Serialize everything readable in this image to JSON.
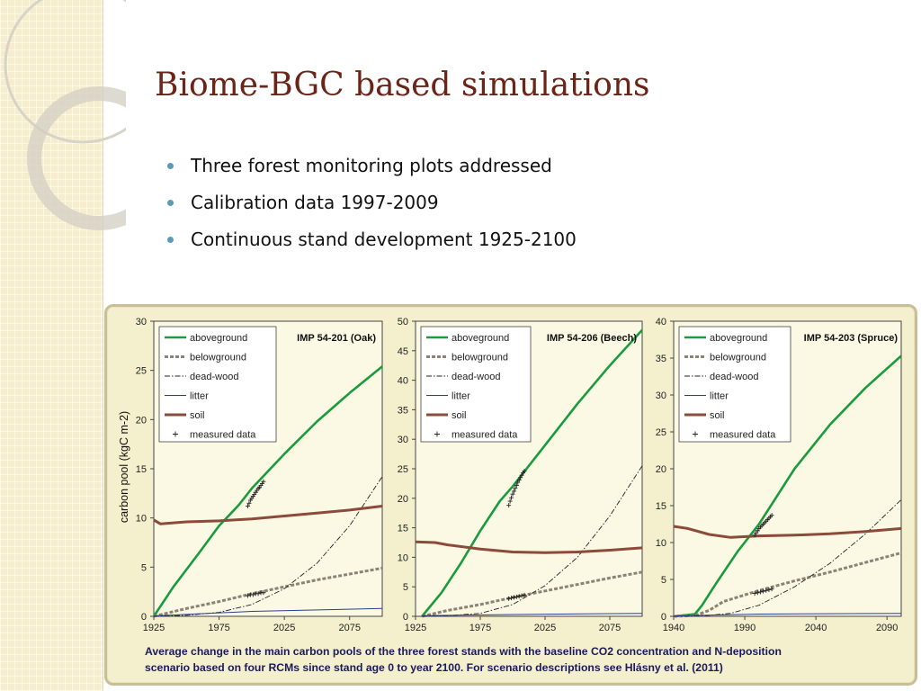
{
  "slide": {
    "title": "Biome-BGC based simulations",
    "bullets": [
      "Three forest monitoring plots addressed",
      "Calibration data 1997-2009",
      "Continuous stand development 1925-2100"
    ],
    "caption_line1": "Average change in the main carbon pools of the three forest stands with the baseline CO2 concentration and N-deposition",
    "caption_line2": "scenario based on four RCMs since stand age 0 to year 2100. For scenario descriptions see Hlásny et al. (2011)"
  },
  "colors": {
    "title": "#6b2418",
    "bullet": "#5b9bb5",
    "aboveground": "#1a9b3e",
    "belowground": "#8c8377",
    "deadwood": "#222222",
    "litter": "#2b3f8f",
    "soil": "#8b4a3a",
    "measured": "#222222",
    "plot_bg": "#fbf9e3"
  },
  "chart_data": [
    {
      "type": "line",
      "title": "IMP 54-201 (Oak)",
      "ylabel": "carbon pool (kgC m-2)",
      "xlim": [
        1925,
        2100
      ],
      "ylim": [
        0,
        30
      ],
      "xticks": [
        "1925",
        "1975",
        "2025",
        "2075"
      ],
      "yticks": [
        "0",
        "5",
        "10",
        "15",
        "20",
        "25",
        "30"
      ],
      "legend_position": "top-left",
      "series": [
        {
          "name": "aboveground",
          "x": [
            1925,
            1940,
            1960,
            1975,
            1990,
            2000,
            2025,
            2050,
            2075,
            2100
          ],
          "y": [
            0,
            3,
            6.5,
            9.2,
            11.3,
            13,
            16.5,
            19.8,
            22.7,
            25.4
          ]
        },
        {
          "name": "belowground",
          "x": [
            1925,
            1950,
            1975,
            2000,
            2025,
            2050,
            2075,
            2100
          ],
          "y": [
            0,
            0.8,
            1.5,
            2.3,
            3,
            3.7,
            4.3,
            4.9
          ]
        },
        {
          "name": "dead-wood",
          "x": [
            1925,
            1950,
            1975,
            2000,
            2025,
            2050,
            2075,
            2100
          ],
          "y": [
            0,
            0.1,
            0.4,
            1.2,
            2.8,
            5.4,
            9.2,
            14.2
          ]
        },
        {
          "name": "litter",
          "x": [
            1925,
            2000,
            2100
          ],
          "y": [
            0.05,
            0.5,
            0.8
          ]
        },
        {
          "name": "soil",
          "x": [
            1925,
            1930,
            1950,
            1975,
            2000,
            2025,
            2050,
            2075,
            2100
          ],
          "y": [
            9.8,
            9.4,
            9.6,
            9.7,
            9.9,
            10.2,
            10.5,
            10.8,
            11.2
          ]
        }
      ],
      "measured": [
        {
          "x": [
            1997,
            1998,
            1999,
            2000,
            2001,
            2002,
            2003,
            2004,
            2005,
            2006,
            2007,
            2008,
            2009
          ],
          "y": [
            11.2,
            11.5,
            11.8,
            12.0,
            12.2,
            12.4,
            12.6,
            12.8,
            13.0,
            13.1,
            13.3,
            13.5,
            13.7
          ]
        },
        {
          "x": [
            1997,
            1999,
            2001,
            2003,
            2005,
            2007,
            2009
          ],
          "y": [
            2.1,
            2.2,
            2.2,
            2.3,
            2.3,
            2.4,
            2.4
          ]
        }
      ]
    },
    {
      "type": "line",
      "title": "IMP 54-206  (Beech)",
      "ylabel": "",
      "xlim": [
        1925,
        2100
      ],
      "ylim": [
        0,
        50
      ],
      "xticks": [
        "1925",
        "1975",
        "2025",
        "2075"
      ],
      "yticks": [
        "0",
        "5",
        "10",
        "15",
        "20",
        "25",
        "30",
        "35",
        "40",
        "45",
        "50"
      ],
      "legend_position": "top-left",
      "series": [
        {
          "name": "aboveground",
          "x": [
            1930,
            1945,
            1960,
            1975,
            1990,
            2000,
            2025,
            2050,
            2075,
            2100
          ],
          "y": [
            0,
            4,
            9,
            14.5,
            19.5,
            22,
            29,
            36,
            42.5,
            48.5
          ]
        },
        {
          "name": "belowground",
          "x": [
            1930,
            1950,
            1975,
            2000,
            2025,
            2050,
            2075,
            2100
          ],
          "y": [
            0,
            1,
            2,
            3.2,
            4.3,
            5.4,
            6.5,
            7.5
          ]
        },
        {
          "name": "dead-wood",
          "x": [
            1930,
            1950,
            1975,
            2000,
            2025,
            2050,
            2075,
            2100
          ],
          "y": [
            0,
            0.1,
            0.5,
            2,
            5.2,
            10,
            17,
            25.5
          ]
        },
        {
          "name": "litter",
          "x": [
            1930,
            2000,
            2100
          ],
          "y": [
            0.1,
            0.3,
            0.5
          ]
        },
        {
          "name": "soil",
          "x": [
            1925,
            1940,
            1950,
            1975,
            2000,
            2025,
            2050,
            2075,
            2100
          ],
          "y": [
            12.6,
            12.5,
            12.1,
            11.4,
            10.9,
            10.8,
            10.9,
            11.2,
            11.6
          ]
        }
      ],
      "measured": [
        {
          "x": [
            1997,
            1998,
            1999,
            2000,
            2001,
            2002,
            2003,
            2004,
            2005,
            2006,
            2007,
            2008,
            2009
          ],
          "y": [
            18.8,
            19.5,
            20.1,
            20.7,
            21.2,
            21.7,
            22.2,
            22.7,
            23.1,
            23.5,
            23.9,
            24.3,
            24.6
          ]
        },
        {
          "x": [
            1997,
            1999,
            2001,
            2003,
            2005,
            2007,
            2009
          ],
          "y": [
            3.0,
            3.1,
            3.2,
            3.3,
            3.4,
            3.5,
            3.6
          ]
        }
      ]
    },
    {
      "type": "line",
      "title": "IMP 54-203 (Spruce)",
      "ylabel": "",
      "xlim": [
        1940,
        2100
      ],
      "ylim": [
        0,
        40
      ],
      "xticks": [
        "1940",
        "1990",
        "2040",
        "2090"
      ],
      "yticks": [
        "0",
        "5",
        "10",
        "15",
        "20",
        "25",
        "30",
        "35",
        "40"
      ],
      "legend_position": "top-left",
      "series": [
        {
          "name": "aboveground",
          "x": [
            1940,
            1955,
            1960,
            1970,
            1985,
            2000,
            2010,
            2025,
            2050,
            2075,
            2100
          ],
          "y": [
            0,
            0.3,
            1.5,
            4.5,
            8.8,
            12.5,
            15.5,
            20,
            26,
            31,
            35.3
          ]
        },
        {
          "name": "belowground",
          "x": [
            1940,
            1955,
            1965,
            1975,
            1990,
            2000,
            2025,
            2050,
            2075,
            2100
          ],
          "y": [
            0,
            0.1,
            0.8,
            2,
            2.9,
            3.5,
            4.8,
            6,
            7.3,
            8.6
          ]
        },
        {
          "name": "dead-wood",
          "x": [
            1940,
            1960,
            1980,
            2000,
            2025,
            2050,
            2075,
            2100
          ],
          "y": [
            0,
            0.05,
            0.4,
            1.5,
            4,
            7.2,
            11.2,
            15.8
          ]
        },
        {
          "name": "litter",
          "x": [
            1940,
            2000,
            2100
          ],
          "y": [
            0.05,
            0.3,
            0.4
          ]
        },
        {
          "name": "soil",
          "x": [
            1940,
            1950,
            1965,
            1980,
            2000,
            2025,
            2050,
            2075,
            2100
          ],
          "y": [
            12.2,
            11.9,
            11.1,
            10.7,
            10.9,
            11.0,
            11.2,
            11.5,
            11.9
          ]
        }
      ],
      "measured": [
        {
          "x": [
            1997,
            1998,
            1999,
            2000,
            2001,
            2002,
            2003,
            2004,
            2005,
            2006,
            2007,
            2008,
            2009
          ],
          "y": [
            11.0,
            11.3,
            11.6,
            11.9,
            12.1,
            12.3,
            12.5,
            12.7,
            12.9,
            13.1,
            13.3,
            13.5,
            13.7
          ]
        },
        {
          "x": [
            1997,
            1999,
            2001,
            2003,
            2005,
            2007,
            2009
          ],
          "y": [
            3.1,
            3.2,
            3.3,
            3.4,
            3.5,
            3.6,
            3.7
          ]
        }
      ],
      "legend_labels": [
        "aboveground",
        "belowground",
        "dead-wood",
        "litter",
        "soil",
        "measured data"
      ]
    }
  ],
  "legend_labels": [
    "aboveground",
    "belowground",
    "dead-wood",
    "litter",
    "soil",
    "measured data"
  ]
}
